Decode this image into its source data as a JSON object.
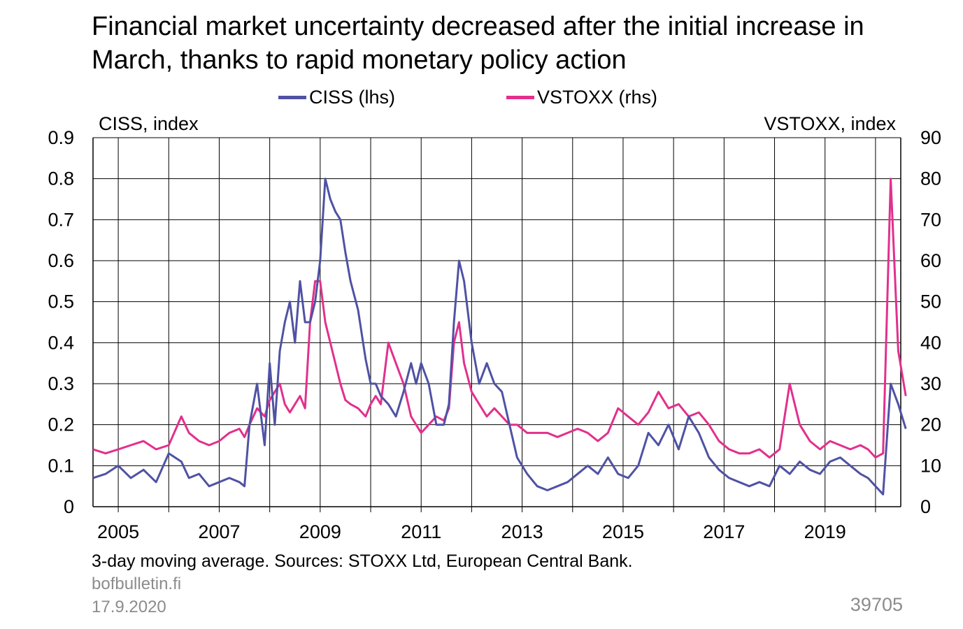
{
  "title": "Financial market uncertainty decreased after the initial increase in March, thanks to rapid monetary policy action",
  "footnote": "3-day moving average. Sources: STOXX Ltd, European Central Bank.",
  "source_url": "bofbulletin.fi",
  "date": "17.9.2020",
  "chart_id": "39705",
  "chart_data": {
    "type": "line",
    "left_axis_title": "CISS, index",
    "right_axis_title": "VSTOXX, index",
    "left_ylim": [
      0,
      0.9
    ],
    "right_ylim": [
      0,
      90
    ],
    "left_ticks": [
      "0",
      "0.1",
      "0.2",
      "0.3",
      "0.4",
      "0.5",
      "0.6",
      "0.7",
      "0.8",
      "0.9"
    ],
    "right_ticks": [
      "0",
      "10",
      "20",
      "30",
      "40",
      "50",
      "60",
      "70",
      "80",
      "90"
    ],
    "xlim": [
      2004.5,
      2020.5
    ],
    "x_tick_labels": [
      "2005",
      "2007",
      "2009",
      "2011",
      "2013",
      "2015",
      "2017",
      "2019"
    ],
    "grid": true,
    "legend_position": "top-center",
    "series": [
      {
        "name": "CISS (lhs)",
        "axis": "left",
        "color": "#4f52a3",
        "x": [
          2004.5,
          2004.75,
          2005.0,
          2005.25,
          2005.5,
          2005.75,
          2006.0,
          2006.25,
          2006.4,
          2006.6,
          2006.8,
          2007.0,
          2007.2,
          2007.4,
          2007.5,
          2007.6,
          2007.75,
          2007.9,
          2008.0,
          2008.1,
          2008.2,
          2008.3,
          2008.4,
          2008.5,
          2008.6,
          2008.7,
          2008.8,
          2008.9,
          2009.0,
          2009.1,
          2009.2,
          2009.3,
          2009.4,
          2009.5,
          2009.6,
          2009.75,
          2009.9,
          2010.0,
          2010.1,
          2010.2,
          2010.35,
          2010.5,
          2010.65,
          2010.8,
          2010.9,
          2011.0,
          2011.15,
          2011.3,
          2011.45,
          2011.55,
          2011.65,
          2011.75,
          2011.85,
          2012.0,
          2012.15,
          2012.3,
          2012.45,
          2012.6,
          2012.75,
          2012.9,
          2013.1,
          2013.3,
          2013.5,
          2013.7,
          2013.9,
          2014.1,
          2014.3,
          2014.5,
          2014.7,
          2014.9,
          2015.1,
          2015.3,
          2015.5,
          2015.7,
          2015.9,
          2016.1,
          2016.3,
          2016.5,
          2016.7,
          2016.9,
          2017.1,
          2017.3,
          2017.5,
          2017.7,
          2017.9,
          2018.1,
          2018.3,
          2018.5,
          2018.7,
          2018.9,
          2019.1,
          2019.3,
          2019.5,
          2019.7,
          2019.85,
          2020.0,
          2020.15,
          2020.3,
          2020.45,
          2020.6
        ],
        "y": [
          0.07,
          0.08,
          0.1,
          0.07,
          0.09,
          0.06,
          0.13,
          0.11,
          0.07,
          0.08,
          0.05,
          0.06,
          0.07,
          0.06,
          0.05,
          0.2,
          0.3,
          0.15,
          0.35,
          0.2,
          0.38,
          0.45,
          0.5,
          0.4,
          0.55,
          0.45,
          0.45,
          0.5,
          0.6,
          0.8,
          0.75,
          0.72,
          0.7,
          0.62,
          0.55,
          0.48,
          0.36,
          0.3,
          0.3,
          0.27,
          0.25,
          0.22,
          0.28,
          0.35,
          0.3,
          0.35,
          0.3,
          0.2,
          0.2,
          0.25,
          0.45,
          0.6,
          0.55,
          0.4,
          0.3,
          0.35,
          0.3,
          0.28,
          0.2,
          0.12,
          0.08,
          0.05,
          0.04,
          0.05,
          0.06,
          0.08,
          0.1,
          0.08,
          0.12,
          0.08,
          0.07,
          0.1,
          0.18,
          0.15,
          0.2,
          0.14,
          0.22,
          0.18,
          0.12,
          0.09,
          0.07,
          0.06,
          0.05,
          0.06,
          0.05,
          0.1,
          0.08,
          0.11,
          0.09,
          0.08,
          0.11,
          0.12,
          0.1,
          0.08,
          0.07,
          0.05,
          0.03,
          0.3,
          0.25,
          0.19
        ]
      },
      {
        "name": "VSTOXX (rhs)",
        "axis": "right",
        "color": "#e2308c",
        "x": [
          2004.5,
          2004.75,
          2005.0,
          2005.25,
          2005.5,
          2005.75,
          2006.0,
          2006.25,
          2006.4,
          2006.6,
          2006.8,
          2007.0,
          2007.2,
          2007.4,
          2007.5,
          2007.6,
          2007.75,
          2007.9,
          2008.0,
          2008.1,
          2008.2,
          2008.3,
          2008.4,
          2008.5,
          2008.6,
          2008.7,
          2008.8,
          2008.9,
          2009.0,
          2009.1,
          2009.2,
          2009.3,
          2009.4,
          2009.5,
          2009.6,
          2009.75,
          2009.9,
          2010.0,
          2010.1,
          2010.2,
          2010.35,
          2010.5,
          2010.65,
          2010.8,
          2010.9,
          2011.0,
          2011.15,
          2011.3,
          2011.45,
          2011.55,
          2011.65,
          2011.75,
          2011.85,
          2012.0,
          2012.15,
          2012.3,
          2012.45,
          2012.6,
          2012.75,
          2012.9,
          2013.1,
          2013.3,
          2013.5,
          2013.7,
          2013.9,
          2014.1,
          2014.3,
          2014.5,
          2014.7,
          2014.9,
          2015.1,
          2015.3,
          2015.5,
          2015.7,
          2015.9,
          2016.1,
          2016.3,
          2016.5,
          2016.7,
          2016.9,
          2017.1,
          2017.3,
          2017.5,
          2017.7,
          2017.9,
          2018.1,
          2018.3,
          2018.5,
          2018.7,
          2018.9,
          2019.1,
          2019.3,
          2019.5,
          2019.7,
          2019.85,
          2020.0,
          2020.15,
          2020.3,
          2020.45,
          2020.6
        ],
        "y": [
          14,
          13,
          14,
          15,
          16,
          14,
          15,
          22,
          18,
          16,
          15,
          16,
          18,
          19,
          17,
          20,
          24,
          22,
          26,
          28,
          30,
          25,
          23,
          25,
          27,
          24,
          45,
          55,
          55,
          45,
          40,
          35,
          30,
          26,
          25,
          24,
          22,
          25,
          27,
          25,
          40,
          35,
          30,
          22,
          20,
          18,
          20,
          22,
          21,
          24,
          40,
          45,
          35,
          28,
          25,
          22,
          24,
          22,
          20,
          20,
          18,
          18,
          18,
          17,
          18,
          19,
          18,
          16,
          18,
          24,
          22,
          20,
          23,
          28,
          24,
          25,
          22,
          23,
          20,
          16,
          14,
          13,
          13,
          14,
          12,
          14,
          30,
          20,
          16,
          14,
          16,
          15,
          14,
          15,
          14,
          12,
          13,
          80,
          38,
          27
        ]
      }
    ]
  }
}
